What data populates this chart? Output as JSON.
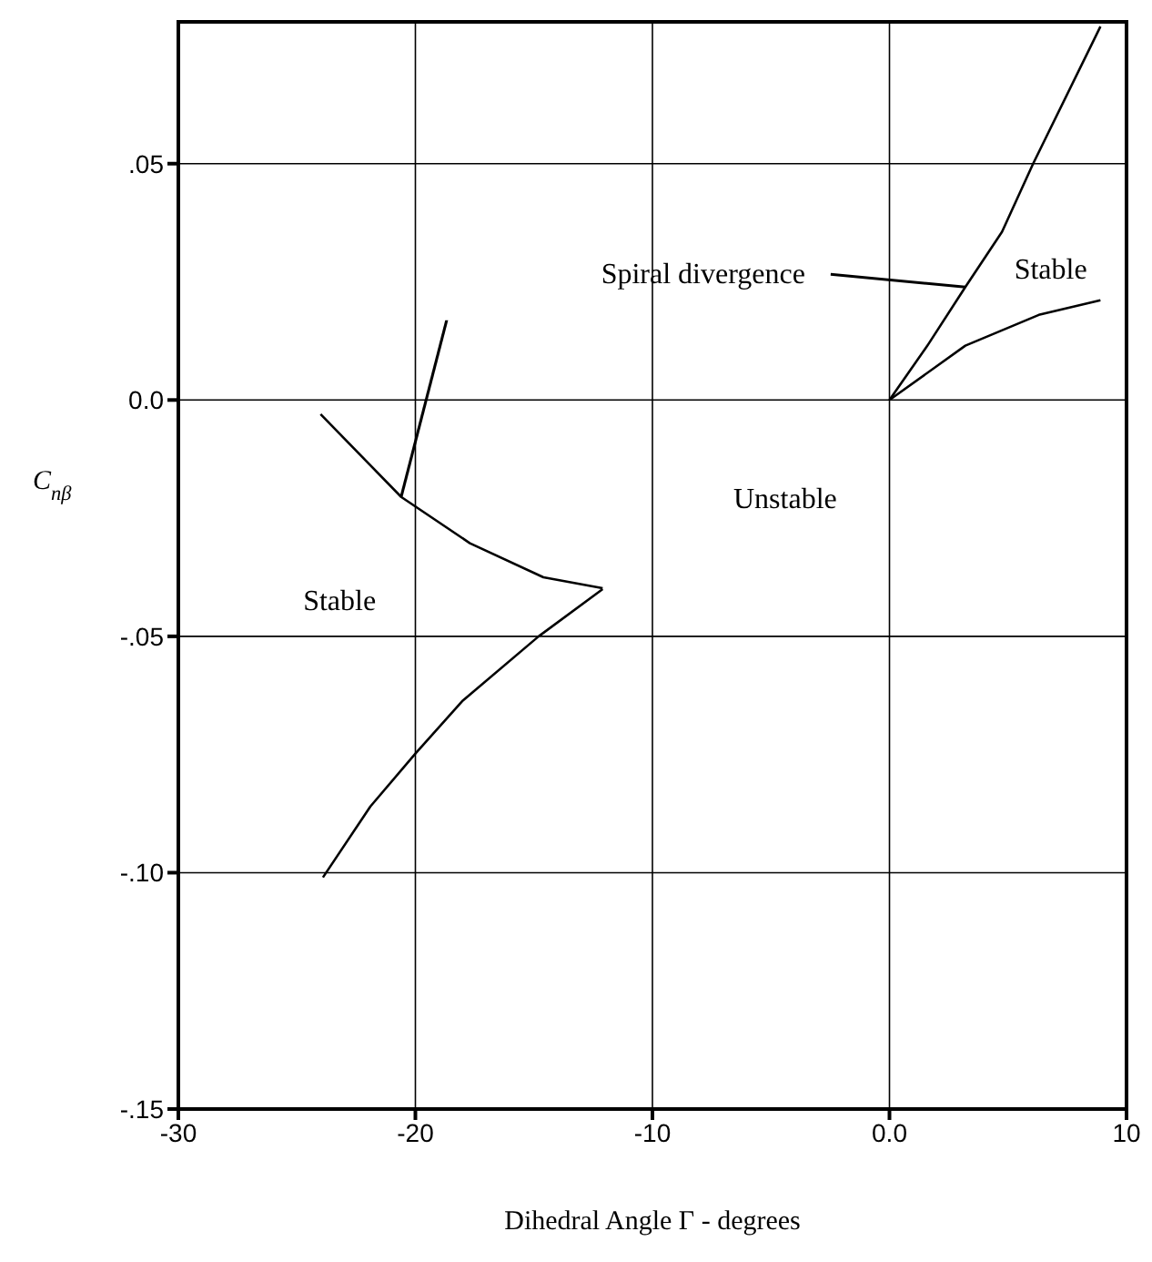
{
  "chart_data": {
    "type": "line",
    "xlabel": "Dihedral Angle Γ - degrees",
    "ylabel": "C$_{nβ}$",
    "xlim": [
      -30,
      10
    ],
    "xticks": [
      -30,
      -20,
      -10,
      {
        "value": 0,
        "label": "0.0"
      },
      10
    ],
    "ylim": [
      -0.15,
      0.08
    ],
    "yticks": [
      {
        "value": -0.15,
        "label": "-.15"
      },
      {
        "value": -0.1,
        "label": "-.10"
      },
      {
        "value": -0.05,
        "label": "-.05"
      },
      {
        "value": 0,
        "label": "0.0"
      },
      {
        "value": 0.05,
        "label": ".05"
      }
    ],
    "grid": true,
    "marker": "none",
    "line_style": "solid",
    "series": [
      {
        "color": "#000000",
        "x": [
          0,
          1.6,
          3.2,
          4.75,
          6.06,
          8.9
        ],
        "values": [
          0,
          0.0115,
          0.0239,
          0.0356,
          0.05,
          0.079
        ]
      },
      {
        "color": "#000000",
        "x": [
          0,
          3.2,
          6.3,
          8.9
        ],
        "values": [
          0,
          0.0115,
          0.018,
          0.0211
        ]
      },
      {
        "color": "#000000",
        "x": [
          -24,
          -20.6,
          -17.7,
          -14.6,
          -12.1
        ],
        "values": [
          -0.003,
          -0.0205,
          -0.0303,
          -0.0375,
          -0.0398
        ]
      },
      {
        "color": "#000000",
        "x": [
          -12.1,
          -14.8,
          -18,
          -20,
          -21.9,
          -23.9
        ],
        "values": [
          -0.04,
          -0.05,
          -0.0636,
          -0.0748,
          -0.086,
          -0.101
        ]
      }
    ],
    "annotations": [
      {
        "text": "Spiral divergence",
        "x": 3.2,
        "y": 0.0239
      },
      "Stable",
      "Unstable",
      "Stable"
    ]
  }
}
